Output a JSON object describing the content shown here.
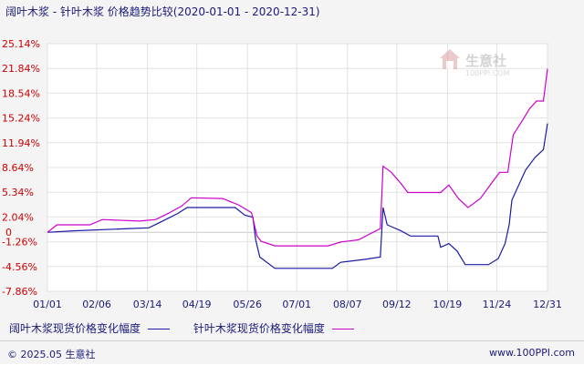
{
  "title": "阔叶木浆 - 针叶木浆 价格趋势比较(2020-01-01 - 2020-12-31)",
  "watermark": {
    "name": "生意社",
    "domain": "100PPI.COM"
  },
  "footer": {
    "copyright": "© 2025.05 生意社",
    "site": "www.100PPI.com"
  },
  "chart_data": {
    "type": "line",
    "ylim": [
      -7.86,
      25.14
    ],
    "yticks": [
      "25.14%",
      "21.84%",
      "18.54%",
      "15.24%",
      "11.94%",
      "8.64%",
      "5.34%",
      "2.04%",
      "-1.26%",
      "-4.56%",
      "-7.86%"
    ],
    "y_zero_label": "0",
    "xlim": [
      "2020-01-01",
      "2020-12-31"
    ],
    "x": [
      "2020-01-01",
      "2020-02-06",
      "2020-03-14",
      "2020-04-19",
      "2020-05-26",
      "2020-07-01",
      "2020-08-07",
      "2020-09-12",
      "2020-10-19",
      "2020-11-24",
      "2020-12-31"
    ],
    "xticks": [
      "01/01",
      "02/06",
      "03/14",
      "04/19",
      "05/26",
      "07/01",
      "08/07",
      "09/12",
      "10/19",
      "11/24",
      "12/31"
    ],
    "grid": true,
    "legend": "bottom",
    "series": [
      {
        "name": "阔叶木浆现货价格变化幅度",
        "color": "#1a1aa6",
        "points": [
          [
            "2020-01-01",
            0
          ],
          [
            "2020-01-20",
            0.2
          ],
          [
            "2020-03-01",
            0.5
          ],
          [
            "2020-03-15",
            0.6
          ],
          [
            "2020-03-25",
            1.5
          ],
          [
            "2020-04-05",
            2.5
          ],
          [
            "2020-04-12",
            3.3
          ],
          [
            "2020-05-17",
            3.3
          ],
          [
            "2020-05-24",
            2.3
          ],
          [
            "2020-05-30",
            2.0
          ],
          [
            "2020-06-01",
            -1.0
          ],
          [
            "2020-06-04",
            -3.3
          ],
          [
            "2020-06-15",
            -4.8
          ],
          [
            "2020-07-27",
            -4.8
          ],
          [
            "2020-08-02",
            -4.0
          ],
          [
            "2020-08-20",
            -3.6
          ],
          [
            "2020-08-31",
            -3.3
          ],
          [
            "2020-09-02",
            3.3
          ],
          [
            "2020-09-05",
            1.0
          ],
          [
            "2020-09-15",
            0.2
          ],
          [
            "2020-09-22",
            -0.5
          ],
          [
            "2020-10-12",
            -0.5
          ],
          [
            "2020-10-14",
            -2.0
          ],
          [
            "2020-10-20",
            -1.5
          ],
          [
            "2020-10-26",
            -2.5
          ],
          [
            "2020-11-01",
            -4.3
          ],
          [
            "2020-11-18",
            -4.3
          ],
          [
            "2020-11-25",
            -3.5
          ],
          [
            "2020-11-30",
            -1.5
          ],
          [
            "2020-12-03",
            1.0
          ],
          [
            "2020-12-05",
            4.3
          ],
          [
            "2020-12-15",
            8.3
          ],
          [
            "2020-12-22",
            10.0
          ],
          [
            "2020-12-28",
            11.0
          ],
          [
            "2020-12-31",
            14.5
          ]
        ]
      },
      {
        "name": "针叶木浆现货价格变化幅度",
        "color": "#cc00cc",
        "points": [
          [
            "2020-01-01",
            0
          ],
          [
            "2020-01-08",
            1.0
          ],
          [
            "2020-02-01",
            1.0
          ],
          [
            "2020-02-10",
            1.7
          ],
          [
            "2020-03-08",
            1.5
          ],
          [
            "2020-03-20",
            1.7
          ],
          [
            "2020-03-29",
            2.5
          ],
          [
            "2020-04-08",
            3.5
          ],
          [
            "2020-04-15",
            4.6
          ],
          [
            "2020-05-08",
            4.5
          ],
          [
            "2020-05-20",
            3.6
          ],
          [
            "2020-05-29",
            2.6
          ],
          [
            "2020-06-02",
            -0.5
          ],
          [
            "2020-06-05",
            -1.2
          ],
          [
            "2020-06-15",
            -1.8
          ],
          [
            "2020-07-24",
            -1.8
          ],
          [
            "2020-08-02",
            -1.3
          ],
          [
            "2020-08-15",
            -1.0
          ],
          [
            "2020-08-31",
            0.5
          ],
          [
            "2020-09-02",
            8.8
          ],
          [
            "2020-09-08",
            8.0
          ],
          [
            "2020-09-15",
            6.5
          ],
          [
            "2020-09-20",
            5.3
          ],
          [
            "2020-10-14",
            5.3
          ],
          [
            "2020-10-20",
            6.3
          ],
          [
            "2020-10-27",
            4.5
          ],
          [
            "2020-11-03",
            3.3
          ],
          [
            "2020-11-12",
            4.5
          ],
          [
            "2020-11-20",
            6.5
          ],
          [
            "2020-11-26",
            8.0
          ],
          [
            "2020-12-02",
            8.0
          ],
          [
            "2020-12-06",
            13.0
          ],
          [
            "2020-12-13",
            15.0
          ],
          [
            "2020-12-18",
            16.5
          ],
          [
            "2020-12-23",
            17.5
          ],
          [
            "2020-12-28",
            17.5
          ],
          [
            "2020-12-31",
            21.8
          ]
        ]
      }
    ]
  }
}
